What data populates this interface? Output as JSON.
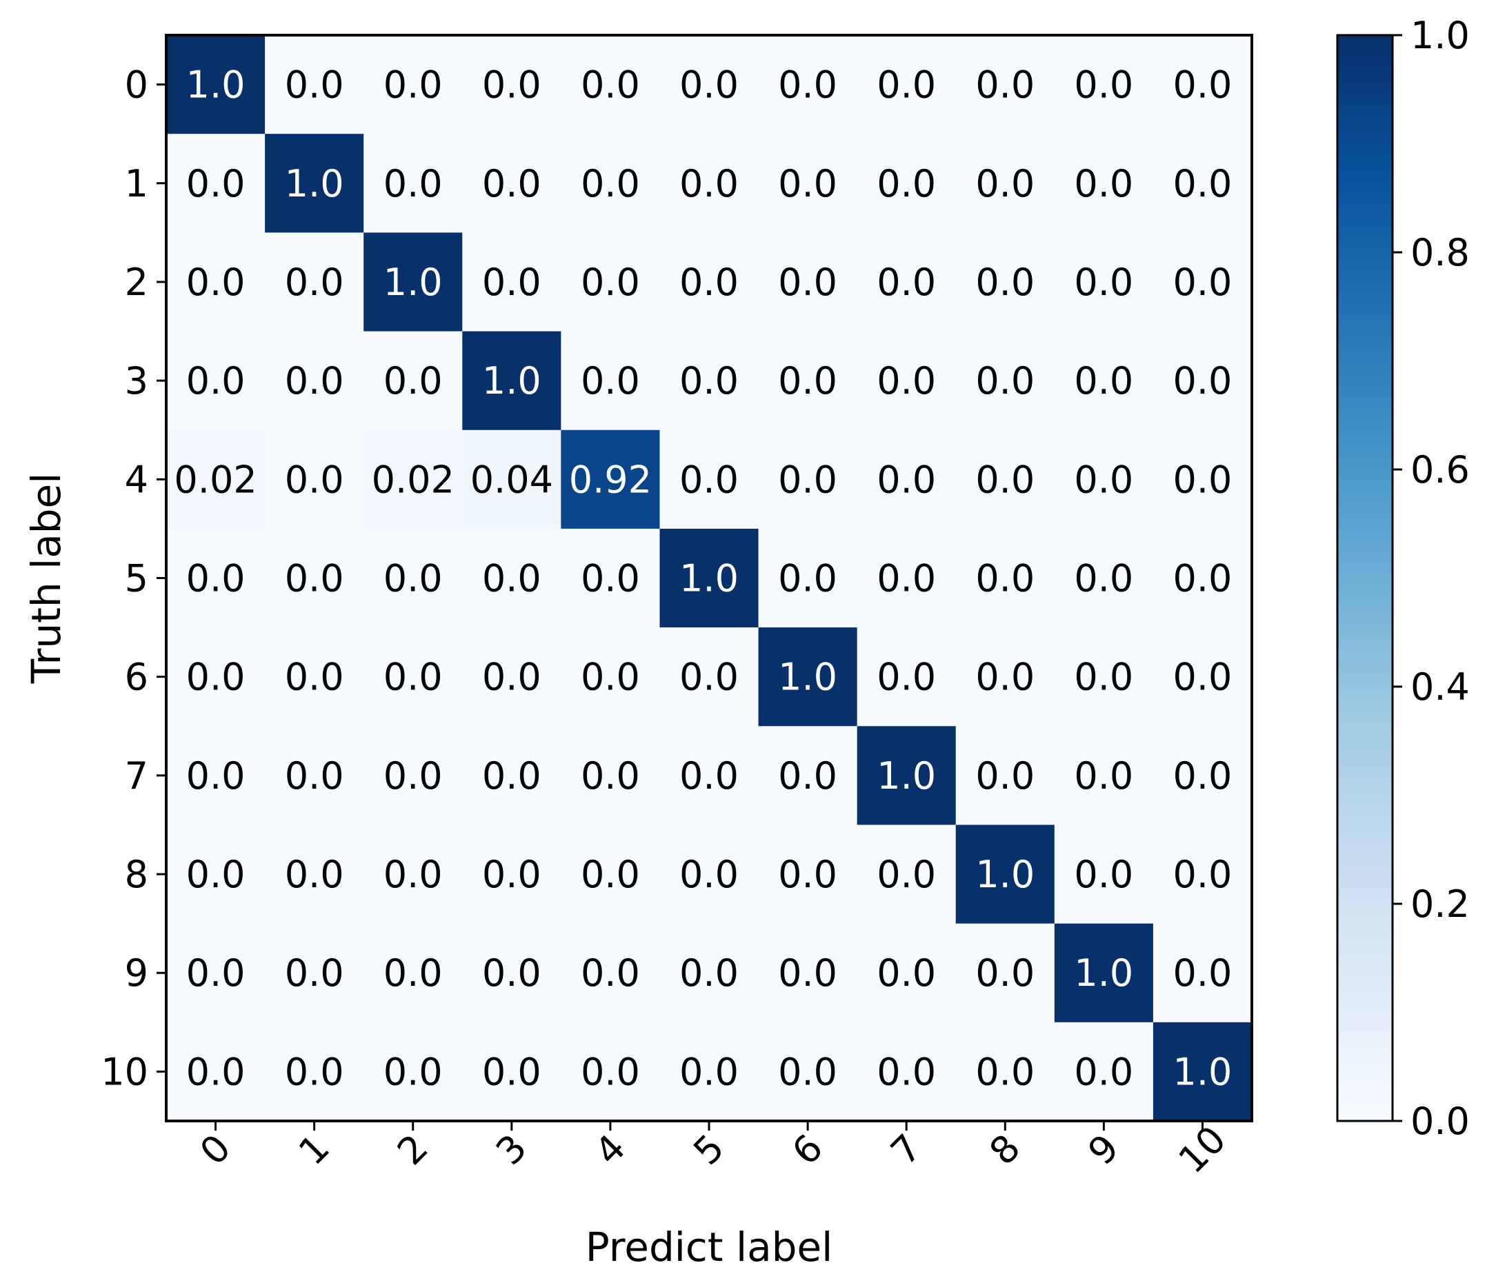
{
  "chart_data": {
    "type": "heatmap",
    "title": "",
    "xlabel": "Predict label",
    "ylabel": "Truth label",
    "x_categories": [
      "0",
      "1",
      "2",
      "3",
      "4",
      "5",
      "6",
      "7",
      "8",
      "9",
      "10"
    ],
    "y_categories": [
      "0",
      "1",
      "2",
      "3",
      "4",
      "5",
      "6",
      "7",
      "8",
      "9",
      "10"
    ],
    "values": [
      [
        1.0,
        0.0,
        0.0,
        0.0,
        0.0,
        0.0,
        0.0,
        0.0,
        0.0,
        0.0,
        0.0
      ],
      [
        0.0,
        1.0,
        0.0,
        0.0,
        0.0,
        0.0,
        0.0,
        0.0,
        0.0,
        0.0,
        0.0
      ],
      [
        0.0,
        0.0,
        1.0,
        0.0,
        0.0,
        0.0,
        0.0,
        0.0,
        0.0,
        0.0,
        0.0
      ],
      [
        0.0,
        0.0,
        0.0,
        1.0,
        0.0,
        0.0,
        0.0,
        0.0,
        0.0,
        0.0,
        0.0
      ],
      [
        0.02,
        0.0,
        0.02,
        0.04,
        0.92,
        0.0,
        0.0,
        0.0,
        0.0,
        0.0,
        0.0
      ],
      [
        0.0,
        0.0,
        0.0,
        0.0,
        0.0,
        1.0,
        0.0,
        0.0,
        0.0,
        0.0,
        0.0
      ],
      [
        0.0,
        0.0,
        0.0,
        0.0,
        0.0,
        0.0,
        1.0,
        0.0,
        0.0,
        0.0,
        0.0
      ],
      [
        0.0,
        0.0,
        0.0,
        0.0,
        0.0,
        0.0,
        0.0,
        1.0,
        0.0,
        0.0,
        0.0
      ],
      [
        0.0,
        0.0,
        0.0,
        0.0,
        0.0,
        0.0,
        0.0,
        0.0,
        1.0,
        0.0,
        0.0
      ],
      [
        0.0,
        0.0,
        0.0,
        0.0,
        0.0,
        0.0,
        0.0,
        0.0,
        0.0,
        1.0,
        0.0
      ],
      [
        0.0,
        0.0,
        0.0,
        0.0,
        0.0,
        0.0,
        0.0,
        0.0,
        0.0,
        0.0,
        1.0
      ]
    ],
    "cell_labels": [
      [
        "1.0",
        "0.0",
        "0.0",
        "0.0",
        "0.0",
        "0.0",
        "0.0",
        "0.0",
        "0.0",
        "0.0",
        "0.0"
      ],
      [
        "0.0",
        "1.0",
        "0.0",
        "0.0",
        "0.0",
        "0.0",
        "0.0",
        "0.0",
        "0.0",
        "0.0",
        "0.0"
      ],
      [
        "0.0",
        "0.0",
        "1.0",
        "0.0",
        "0.0",
        "0.0",
        "0.0",
        "0.0",
        "0.0",
        "0.0",
        "0.0"
      ],
      [
        "0.0",
        "0.0",
        "0.0",
        "1.0",
        "0.0",
        "0.0",
        "0.0",
        "0.0",
        "0.0",
        "0.0",
        "0.0"
      ],
      [
        "0.02",
        "0.0",
        "0.02",
        "0.04",
        "0.92",
        "0.0",
        "0.0",
        "0.0",
        "0.0",
        "0.0",
        "0.0"
      ],
      [
        "0.0",
        "0.0",
        "0.0",
        "0.0",
        "0.0",
        "1.0",
        "0.0",
        "0.0",
        "0.0",
        "0.0",
        "0.0"
      ],
      [
        "0.0",
        "0.0",
        "0.0",
        "0.0",
        "0.0",
        "0.0",
        "1.0",
        "0.0",
        "0.0",
        "0.0",
        "0.0"
      ],
      [
        "0.0",
        "0.0",
        "0.0",
        "0.0",
        "0.0",
        "0.0",
        "0.0",
        "1.0",
        "0.0",
        "0.0",
        "0.0"
      ],
      [
        "0.0",
        "0.0",
        "0.0",
        "0.0",
        "0.0",
        "0.0",
        "0.0",
        "0.0",
        "1.0",
        "0.0",
        "0.0"
      ],
      [
        "0.0",
        "0.0",
        "0.0",
        "0.0",
        "0.0",
        "0.0",
        "0.0",
        "0.0",
        "0.0",
        "1.0",
        "0.0"
      ],
      [
        "0.0",
        "0.0",
        "0.0",
        "0.0",
        "0.0",
        "0.0",
        "0.0",
        "0.0",
        "0.0",
        "0.0",
        "1.0"
      ]
    ],
    "colormap": "Blues",
    "color_range": [
      0.0,
      1.0
    ],
    "colorbar_ticks": [
      "0.0",
      "0.2",
      "0.4",
      "0.6",
      "0.8",
      "1.0"
    ],
    "colorbar_position": "right",
    "grid": false
  }
}
